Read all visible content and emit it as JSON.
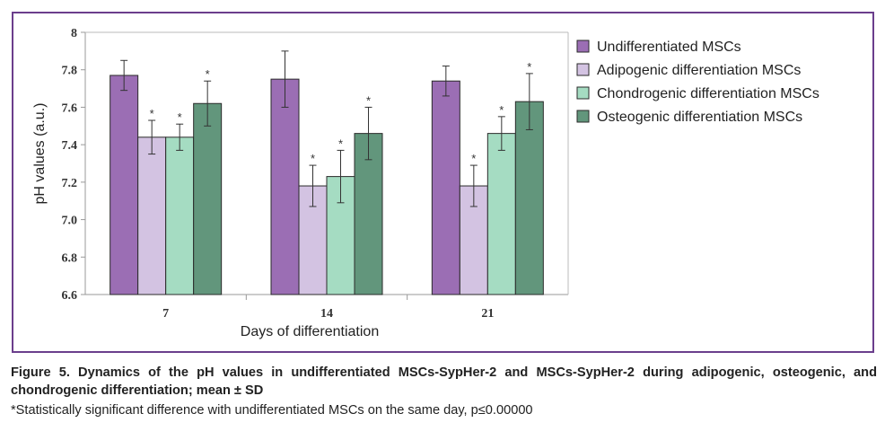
{
  "caption": {
    "title": "Figure 5. Dynamics of the pH values in undifferentiated MSCs-SypHer-2 and MSCs-SypHer-2 during adipogenic, osteogenic, and chondrogenic differentiation; mean ± SD",
    "note": "*Statistically significant difference with undifferentiated MSCs on the same day, p≤0.00000"
  },
  "chart_data": {
    "type": "bar",
    "xlabel": "Days of differentiation",
    "ylabel": "pH values (a.u.)",
    "categories": [
      "7",
      "14",
      "21"
    ],
    "ylim": [
      6.6,
      8.0
    ],
    "yticks": [
      "6.6",
      "6.8",
      "7.0",
      "7.2",
      "7.4",
      "7.6",
      "7.8",
      "8"
    ],
    "legend_position": "right",
    "grid": false,
    "significance_marker": "*",
    "series": [
      {
        "name": "Undifferentiated MSCs",
        "color": "#9b6eb4",
        "values": [
          7.77,
          7.75,
          7.74
        ],
        "sd": [
          0.08,
          0.15,
          0.08
        ],
        "significant": [
          false,
          false,
          false
        ]
      },
      {
        "name": "Adipogenic differentiation MSCs",
        "color": "#d3c3e2",
        "values": [
          7.44,
          7.18,
          7.18
        ],
        "sd": [
          0.09,
          0.11,
          0.11
        ],
        "significant": [
          true,
          true,
          true
        ]
      },
      {
        "name": "Chondrogenic differentiation MSCs",
        "color": "#a5dcc2",
        "values": [
          7.44,
          7.23,
          7.46
        ],
        "sd": [
          0.07,
          0.14,
          0.09
        ],
        "significant": [
          true,
          true,
          true
        ]
      },
      {
        "name": "Osteogenic differentiation MSCs",
        "color": "#62967c",
        "values": [
          7.62,
          7.46,
          7.63
        ],
        "sd": [
          0.12,
          0.14,
          0.15
        ],
        "significant": [
          true,
          true,
          true
        ]
      }
    ]
  }
}
